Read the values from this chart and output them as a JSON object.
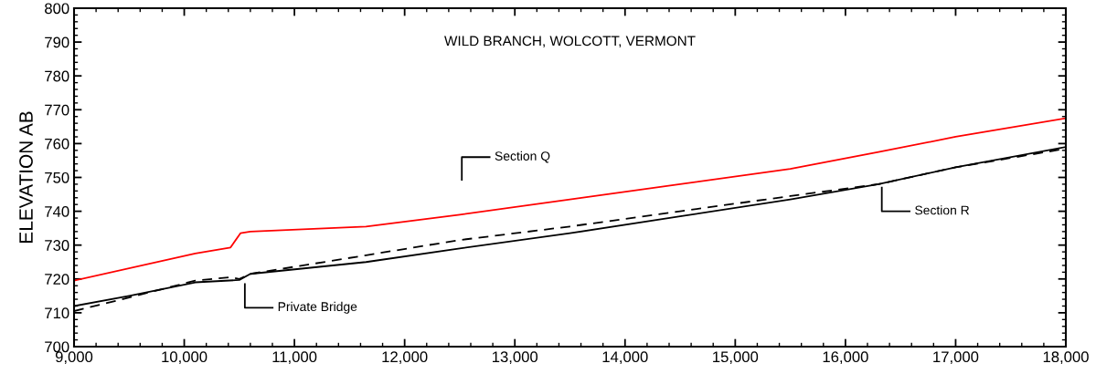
{
  "chart_data": {
    "type": "line",
    "title": "WILD BRANCH, WOLCOTT, VERMONT",
    "ylabel": "ELEVATION AB",
    "xlim": [
      9000,
      18000
    ],
    "xticks": [
      {
        "value": 9000,
        "label": "9,000"
      },
      {
        "value": 10000,
        "label": "10,000"
      },
      {
        "value": 11000,
        "label": "11,000"
      },
      {
        "value": 12000,
        "label": "12,000"
      },
      {
        "value": 13000,
        "label": "13,000"
      },
      {
        "value": 14000,
        "label": "14,000"
      },
      {
        "value": 15000,
        "label": "15,000"
      },
      {
        "value": 16000,
        "label": "16,000"
      },
      {
        "value": 17000,
        "label": "17,000"
      },
      {
        "value": 18000,
        "label": "18,000"
      }
    ],
    "ylim": [
      700,
      800
    ],
    "yticks": [
      700,
      710,
      720,
      730,
      740,
      750,
      760,
      770,
      780,
      790,
      800
    ],
    "grid": false,
    "marker": "none",
    "series": [
      {
        "color": "#ff0000",
        "line_style": "solid",
        "x": [
          9000,
          10100,
          10420,
          10510,
          10600,
          11650,
          12500,
          13500,
          14500,
          15500,
          16300,
          17000,
          18000
        ],
        "values": [
          719.5,
          727.5,
          729.3,
          733.5,
          734,
          735.5,
          739,
          743.5,
          748,
          752.5,
          757.5,
          762,
          767.5
        ]
      },
      {
        "color": "#000000",
        "line_style": "dashed",
        "x": [
          9000,
          9500,
          10100,
          10420,
          10500,
          10600,
          11650,
          12500,
          13500,
          14500,
          15500,
          16300,
          17000,
          18000
        ],
        "values": [
          710.5,
          714.5,
          719.5,
          720.5,
          720,
          721.5,
          727,
          731.5,
          735.5,
          740,
          744.5,
          748,
          753,
          758.5
        ]
      },
      {
        "color": "#000000",
        "line_style": "solid",
        "x": [
          9000,
          9500,
          10100,
          10500,
          10600,
          11650,
          12500,
          13500,
          14500,
          15500,
          16300,
          17000,
          18000
        ],
        "values": [
          712,
          715,
          719,
          719.7,
          721.5,
          725,
          729,
          733.5,
          738.5,
          743.5,
          748,
          753,
          759
        ]
      }
    ],
    "annotations": [
      {
        "text": "Private Bridge",
        "x": 10550,
        "y": 719
      },
      "Section Q",
      {
        "text": "Section R",
        "x": 16330,
        "y": 747.5
      }
    ]
  }
}
